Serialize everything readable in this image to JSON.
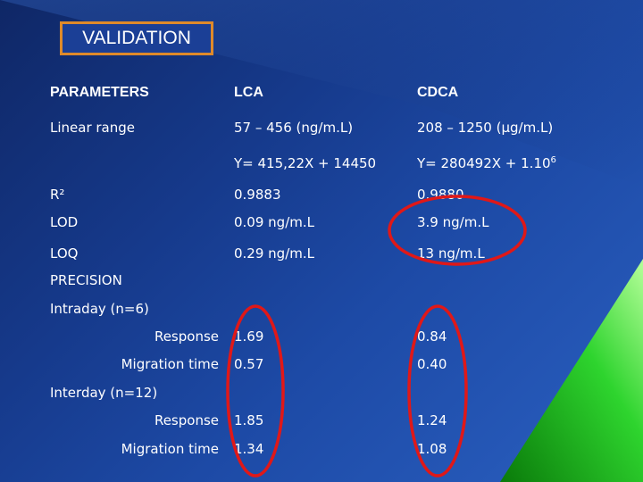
{
  "slide": {
    "title": "VALIDATION",
    "headers": {
      "parameters": "PARAMETERS",
      "lca": "LCA",
      "cdca": "CDCA"
    },
    "linear_range": {
      "label": "Linear range",
      "lca_range": "57 – 456 (ng/m.L)",
      "cdca_range": "208 – 1250 (µg/m.L)",
      "lca_equation": "Y= 415,22X + 14450",
      "cdca_equation": "Y= 280492X + 1.10",
      "cdca_equation_exp": "6"
    },
    "r2": {
      "label": "R²",
      "lca": "0.9883",
      "cdca": "0.9880"
    },
    "lod": {
      "label": "LOD",
      "lca": "0.09 ng/m.L",
      "cdca": "3.9 ng/m.L"
    },
    "loq": {
      "label": "LOQ",
      "lca": "0.29 ng/m.L",
      "cdca": "13 ng/m.L"
    },
    "precision": {
      "label": "PRECISION",
      "intraday": {
        "label": "Intraday (n=6)",
        "response": {
          "label": "Response",
          "lca": "1.69",
          "cdca": "0.84"
        },
        "migration": {
          "label": "Migration time",
          "lca": "0.57",
          "cdca": "0.40"
        }
      },
      "interday": {
        "label": "Interday (n=12)",
        "response": {
          "label": "Response",
          "lca": "1.85",
          "cdca": "1.24"
        },
        "migration": {
          "label": "Migration time",
          "lca": "1.34",
          "cdca": "1.08"
        }
      }
    },
    "colors": {
      "highlight": "#e01818",
      "title_border": "#df8a2a",
      "accent_green": "#2ed42e"
    }
  }
}
